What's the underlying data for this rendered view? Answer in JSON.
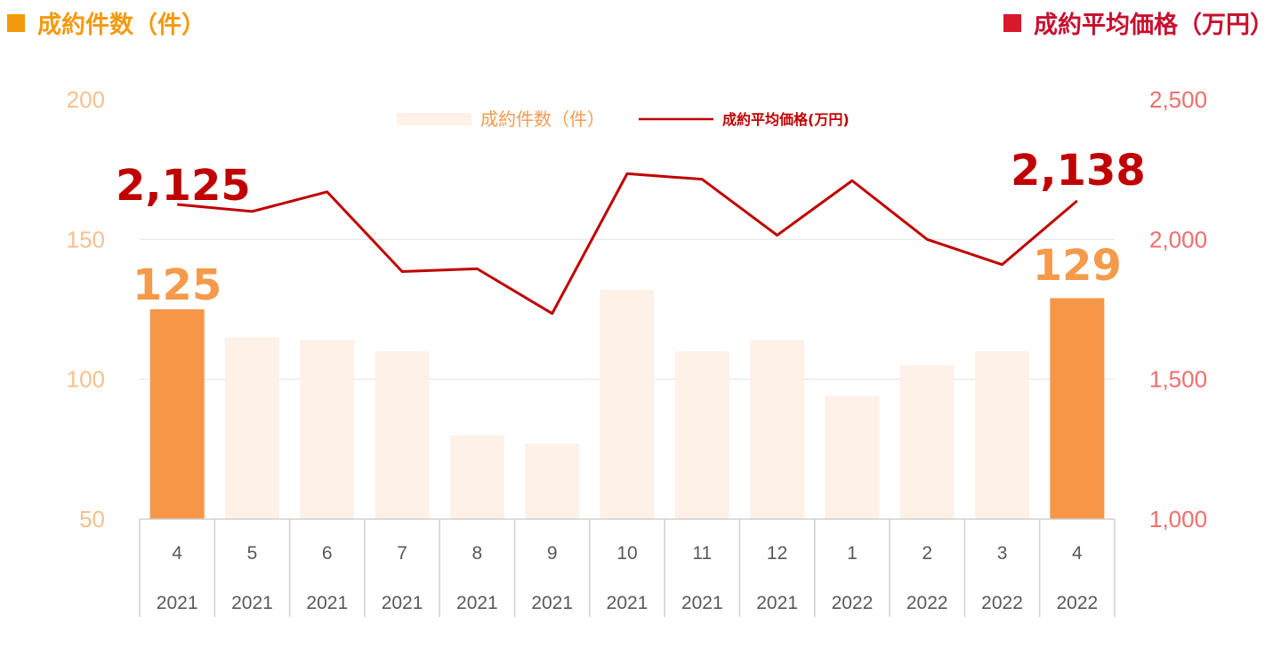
{
  "header": {
    "left_title": "成約件数（件）",
    "right_title": "成約平均価格（万円）",
    "left_color": "#f39a0c",
    "right_color": "#d9182b"
  },
  "chart_data": {
    "type": "bar",
    "categories": [
      {
        "month": "4",
        "year": "2021"
      },
      {
        "month": "5",
        "year": "2021"
      },
      {
        "month": "6",
        "year": "2021"
      },
      {
        "month": "7",
        "year": "2021"
      },
      {
        "month": "8",
        "year": "2021"
      },
      {
        "month": "9",
        "year": "2021"
      },
      {
        "month": "10",
        "year": "2021"
      },
      {
        "month": "11",
        "year": "2021"
      },
      {
        "month": "12",
        "year": "2021"
      },
      {
        "month": "1",
        "year": "2022"
      },
      {
        "month": "2",
        "year": "2022"
      },
      {
        "month": "3",
        "year": "2022"
      },
      {
        "month": "4",
        "year": "2022"
      }
    ],
    "series": [
      {
        "name": "成約件数（件）",
        "type": "bar",
        "axis": "left",
        "values": [
          125,
          115,
          114,
          110,
          80,
          77,
          132,
          110,
          114,
          94,
          105,
          110,
          129
        ],
        "color": "#fdf1e8",
        "highlight_color": "#f79646",
        "highlight_indices": [
          0,
          12
        ]
      },
      {
        "name": "成約平均価格(万円)",
        "type": "line",
        "axis": "right",
        "values": [
          2125,
          2100,
          2170,
          1885,
          1895,
          1735,
          2235,
          2215,
          2015,
          2210,
          2000,
          1910,
          2138
        ],
        "color": "#c00000"
      }
    ],
    "left_axis": {
      "min": 50,
      "max": 200,
      "ticks": [
        "50",
        "100",
        "150",
        "200"
      ]
    },
    "right_axis": {
      "min": 1000,
      "max": 2500,
      "ticks": [
        "1,000",
        "1,500",
        "2,000",
        "2,500"
      ]
    },
    "legend_position": "top-center",
    "grid": true,
    "callouts": {
      "line_first": "2,125",
      "line_last": "2,138",
      "bar_first": "125",
      "bar_last": "129"
    }
  }
}
